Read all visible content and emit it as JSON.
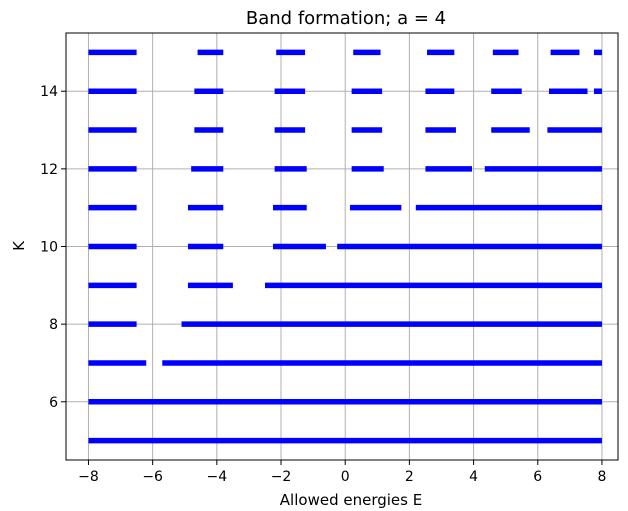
{
  "chart_data": {
    "type": "horizontal-segments",
    "title": "Band formation; a = 4",
    "xlabel": "Allowed energies E",
    "ylabel": "K",
    "xlim": [
      -8.7,
      8.5
    ],
    "ylim": [
      4.5,
      15.5
    ],
    "xticks": [
      -8,
      -6,
      -4,
      -2,
      0,
      2,
      4,
      6,
      8
    ],
    "xtick_labels": [
      "−8",
      "−6",
      "−4",
      "−2",
      "0",
      "2",
      "4",
      "6",
      "8"
    ],
    "yticks": [
      6,
      8,
      10,
      12,
      14
    ],
    "ytick_labels": [
      "6",
      "8",
      "10",
      "12",
      "14"
    ],
    "grid": true,
    "color": "#0000ff",
    "bands": [
      {
        "K": 5,
        "ranges": [
          [
            -8,
            8
          ]
        ]
      },
      {
        "K": 6,
        "ranges": [
          [
            -8,
            8
          ]
        ]
      },
      {
        "K": 7,
        "ranges": [
          [
            -8,
            -6.2
          ],
          [
            -5.7,
            8
          ]
        ]
      },
      {
        "K": 8,
        "ranges": [
          [
            -8,
            -6.5
          ],
          [
            -5.1,
            8
          ]
        ]
      },
      {
        "K": 9,
        "ranges": [
          [
            -8,
            -6.5
          ],
          [
            -4.9,
            -3.5
          ],
          [
            -2.5,
            8
          ]
        ]
      },
      {
        "K": 10,
        "ranges": [
          [
            -8,
            -6.5
          ],
          [
            -4.9,
            -3.8
          ],
          [
            -2.25,
            -0.6
          ],
          [
            -0.25,
            8
          ]
        ]
      },
      {
        "K": 11,
        "ranges": [
          [
            -8,
            -6.5
          ],
          [
            -4.9,
            -3.8
          ],
          [
            -2.25,
            -1.2
          ],
          [
            0.15,
            1.75
          ],
          [
            2.2,
            8
          ]
        ]
      },
      {
        "K": 12,
        "ranges": [
          [
            -8,
            -6.5
          ],
          [
            -4.8,
            -3.8
          ],
          [
            -2.2,
            -1.2
          ],
          [
            0.2,
            1.2
          ],
          [
            2.5,
            3.95
          ],
          [
            4.35,
            8
          ]
        ]
      },
      {
        "K": 13,
        "ranges": [
          [
            -8,
            -6.5
          ],
          [
            -4.7,
            -3.8
          ],
          [
            -2.2,
            -1.25
          ],
          [
            0.2,
            1.15
          ],
          [
            2.5,
            3.45
          ],
          [
            4.55,
            5.75
          ],
          [
            6.3,
            8
          ]
        ]
      },
      {
        "K": 14,
        "ranges": [
          [
            -8,
            -6.5
          ],
          [
            -4.7,
            -3.8
          ],
          [
            -2.2,
            -1.25
          ],
          [
            0.2,
            1.15
          ],
          [
            2.5,
            3.4
          ],
          [
            4.55,
            5.5
          ],
          [
            6.35,
            7.55
          ],
          [
            7.75,
            8
          ]
        ]
      },
      {
        "K": 15,
        "ranges": [
          [
            -8,
            -6.5
          ],
          [
            -4.6,
            -3.8
          ],
          [
            -2.15,
            -1.25
          ],
          [
            0.25,
            1.1
          ],
          [
            2.55,
            3.4
          ],
          [
            4.6,
            5.4
          ],
          [
            6.4,
            7.3
          ],
          [
            7.75,
            8
          ]
        ]
      }
    ]
  }
}
